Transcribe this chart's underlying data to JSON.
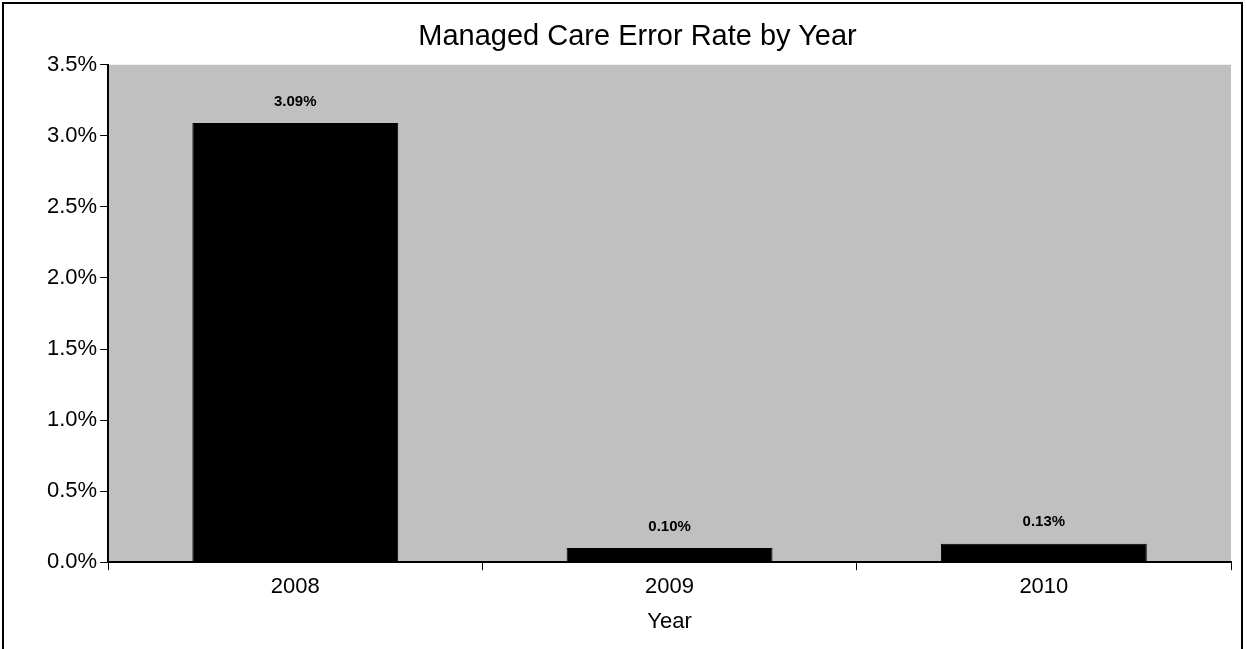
{
  "chart_data": {
    "type": "bar",
    "title": "Managed Care Error Rate by Year",
    "xlabel": "Year",
    "categories": [
      "2008",
      "2009",
      "2010"
    ],
    "series": [
      {
        "color": "#000000",
        "values": [
          3.09,
          0.1,
          0.13
        ],
        "value_labels": [
          "3.09%",
          "0.10%",
          "0.13%"
        ]
      }
    ],
    "ylim": [
      0,
      3.5
    ],
    "yticks": [
      {
        "value": 0,
        "label": "0.0%"
      },
      {
        "value": 0.5,
        "label": "0.5%"
      },
      {
        "value": 1,
        "label": "1.0%"
      },
      {
        "value": 1.5,
        "label": "1.5%"
      },
      {
        "value": 2,
        "label": "2.0%"
      },
      {
        "value": 2.5,
        "label": "2.5%"
      },
      {
        "value": 3,
        "label": "3.0%"
      },
      {
        "value": 3.5,
        "label": "3.5%"
      }
    ],
    "grid": false,
    "legend": false
  }
}
